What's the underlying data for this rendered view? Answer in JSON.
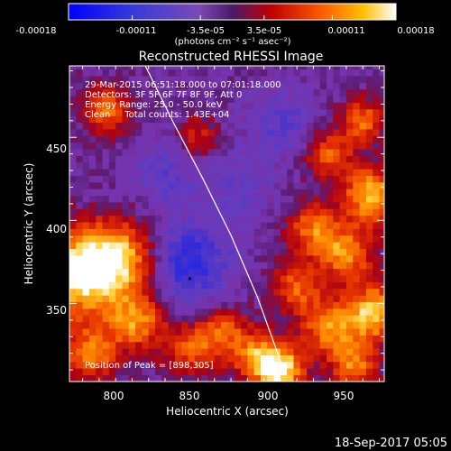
{
  "chart_data": {
    "type": "heatmap",
    "title": "Reconstructed RHESSI Image",
    "xlabel": "Heliocentric X (arcsec)",
    "ylabel": "Heliocentric Y (arcsec)",
    "x_ticks": [
      800,
      850,
      900,
      950
    ],
    "y_ticks": [
      350,
      400,
      450
    ],
    "xlim": [
      777,
      968
    ],
    "ylim": [
      303,
      493
    ],
    "colorbar": {
      "ticks": [
        "-0.00018",
        "-0.00011",
        "-3.5e-05",
        "3.5e-05",
        "0.00011",
        "0.00018"
      ],
      "range": [
        -0.00018,
        0.00018
      ],
      "units_label": "(photons cm⁻² s⁻¹ asec⁻²)"
    },
    "annotations": [
      "29-Mar-2015 06:51:18.000 to 07:01:18.000",
      "Detectors: 3F 5F 6F 7F 8F 9F, Att 0",
      "Energy Range: 25.0 - 50.0 keV",
      "Clean     Total counts: 1.43E+04"
    ],
    "peak_label": "Position of Peak = [898,305]",
    "peak_position": [
      898,
      305
    ],
    "limb_curve_x": [
      823,
      840,
      858,
      875,
      891,
      907
    ],
    "limb_curve_y": [
      493,
      459,
      425,
      391,
      354,
      310
    ],
    "hot_spots": [
      {
        "x": 800,
        "y": 467,
        "amp": 1.6,
        "sigma": 10
      },
      {
        "x": 783,
        "y": 368,
        "amp": 2.6,
        "sigma": 18
      },
      {
        "x": 808,
        "y": 378,
        "amp": 2.0,
        "sigma": 15
      },
      {
        "x": 818,
        "y": 340,
        "amp": 1.8,
        "sigma": 12
      },
      {
        "x": 790,
        "y": 320,
        "amp": 1.6,
        "sigma": 12
      },
      {
        "x": 855,
        "y": 450,
        "amp": 1.0,
        "sigma": 9
      },
      {
        "x": 870,
        "y": 333,
        "amp": 1.4,
        "sigma": 11
      },
      {
        "x": 850,
        "y": 322,
        "amp": 1.3,
        "sigma": 11
      },
      {
        "x": 905,
        "y": 310,
        "amp": 2.6,
        "sigma": 10
      },
      {
        "x": 890,
        "y": 318,
        "amp": 1.6,
        "sigma": 10
      },
      {
        "x": 935,
        "y": 440,
        "amp": 1.4,
        "sigma": 10
      },
      {
        "x": 955,
        "y": 460,
        "amp": 1.6,
        "sigma": 9
      },
      {
        "x": 960,
        "y": 415,
        "amp": 2.2,
        "sigma": 12
      },
      {
        "x": 925,
        "y": 395,
        "amp": 1.6,
        "sigma": 11
      },
      {
        "x": 945,
        "y": 380,
        "amp": 1.8,
        "sigma": 11
      },
      {
        "x": 962,
        "y": 345,
        "amp": 2.2,
        "sigma": 12
      },
      {
        "x": 935,
        "y": 335,
        "amp": 1.8,
        "sigma": 12
      },
      {
        "x": 950,
        "y": 312,
        "amp": 1.6,
        "sigma": 10
      },
      {
        "x": 915,
        "y": 360,
        "amp": 1.4,
        "sigma": 11
      }
    ],
    "cold_spots": [
      {
        "x": 850,
        "y": 375,
        "amp": -1.4,
        "sigma": 18
      },
      {
        "x": 835,
        "y": 430,
        "amp": -0.7,
        "sigma": 15
      },
      {
        "x": 905,
        "y": 460,
        "amp": -0.8,
        "sigma": 14
      },
      {
        "x": 880,
        "y": 420,
        "amp": -0.6,
        "sigma": 15
      }
    ],
    "cell_arcsec": 4,
    "grid": false,
    "timestamp": "18-Sep-2017 05:05"
  }
}
